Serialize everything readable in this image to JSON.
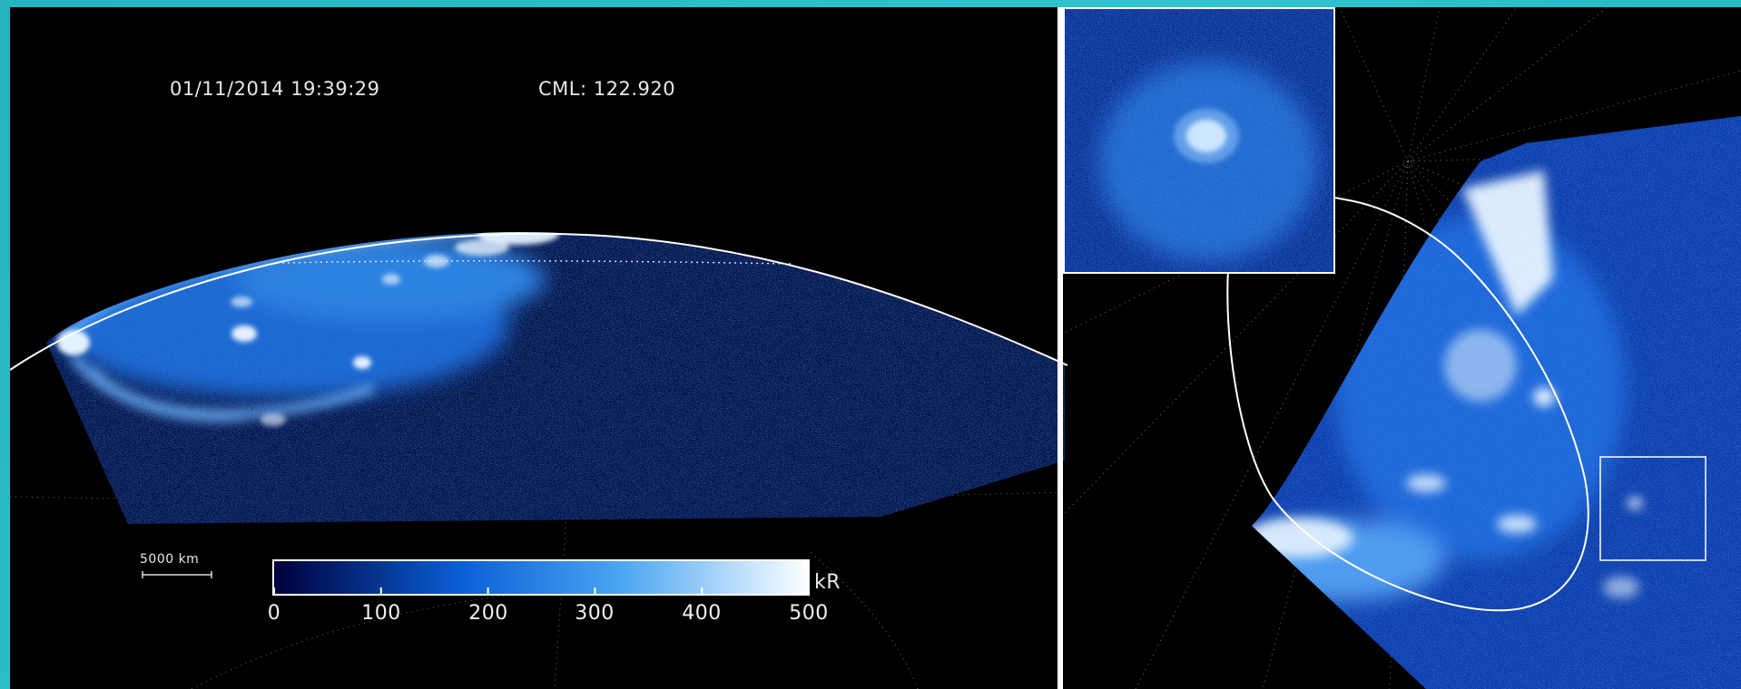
{
  "image": {
    "timestamp": "01/11/2014 19:39:29",
    "cml": "CML: 122.920",
    "scale_bar": "5000 km"
  },
  "colorbar": {
    "unit": "kR",
    "ticks": [
      "0",
      "100",
      "200",
      "300",
      "400",
      "500"
    ],
    "range": [
      0,
      500
    ],
    "colors": [
      "#00003a",
      "#0a5fd6",
      "#4aa6f2",
      "#ffffff"
    ]
  },
  "colors": {
    "border": "#2fc4cf",
    "background": "#000000",
    "aurora_low": "#0a2a9a",
    "aurora_mid": "#2e8be8",
    "aurora_high": "#ffffff",
    "outline": "#ffffff"
  }
}
